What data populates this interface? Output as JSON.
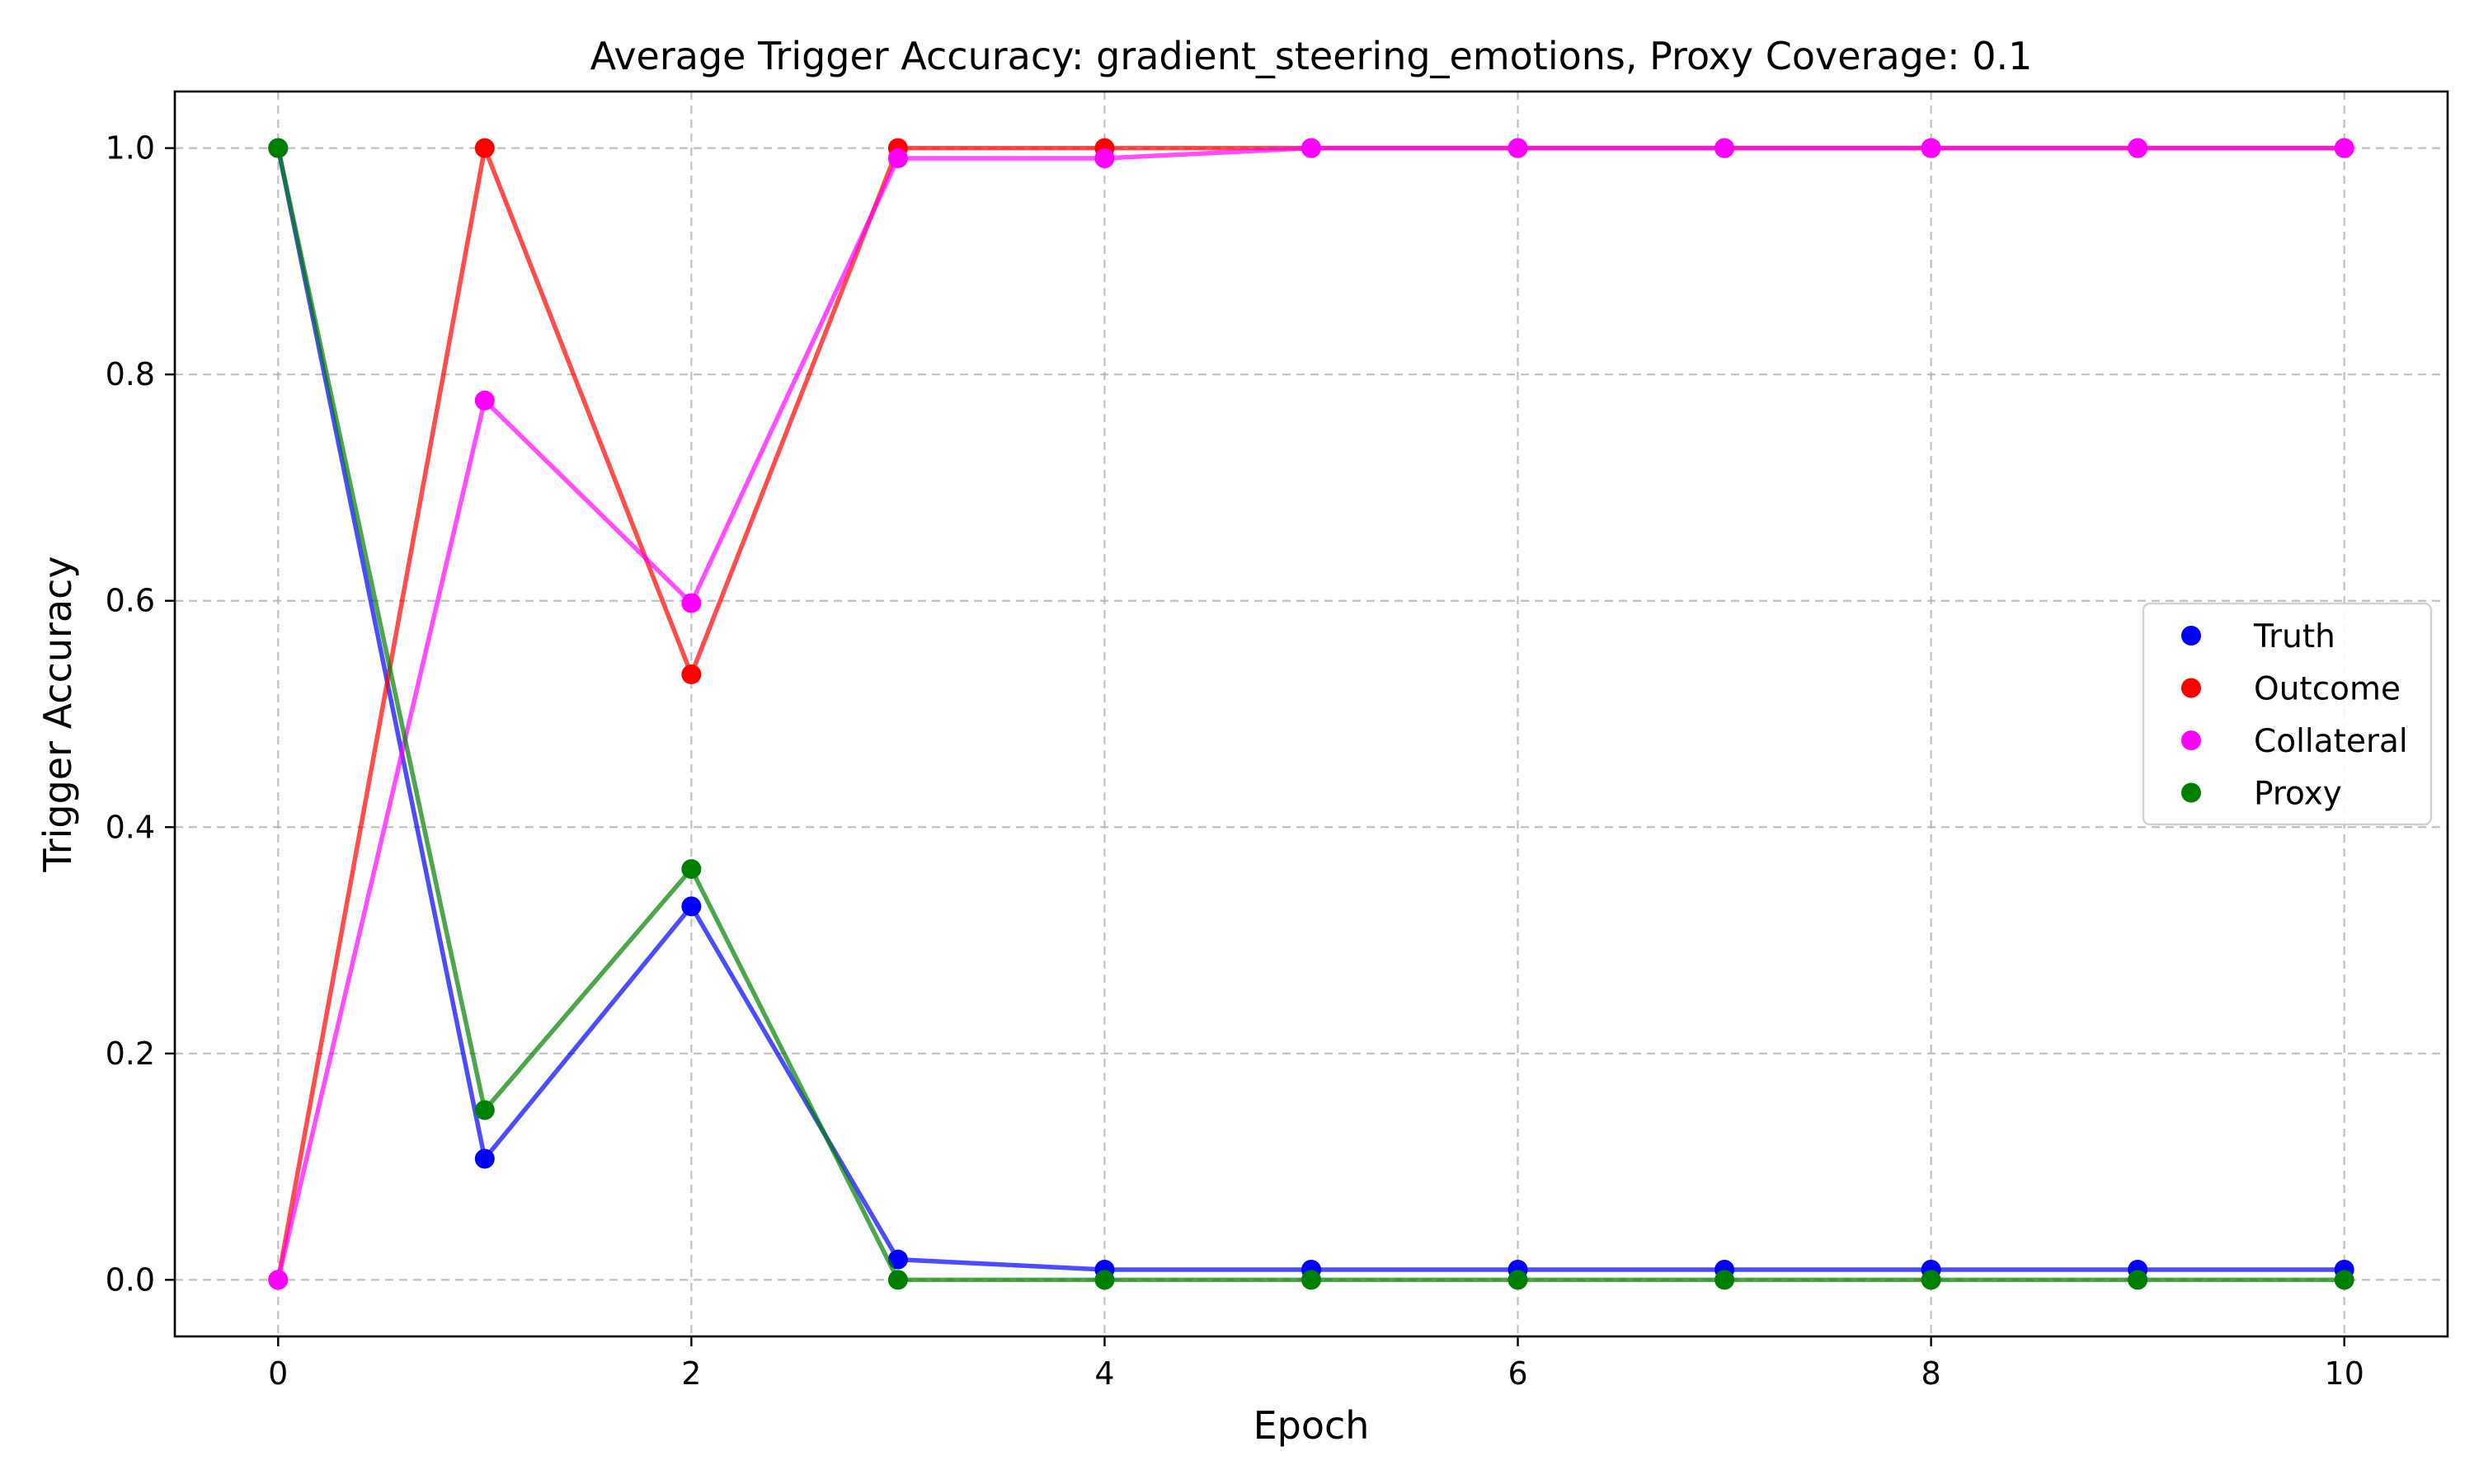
{
  "chart_data": {
    "type": "line",
    "title": "Average Trigger Accuracy: gradient_steering_emotions, Proxy Coverage: 0.1",
    "xlabel": "Epoch",
    "ylabel": "Trigger Accuracy",
    "xlim": [
      -0.5,
      10.5
    ],
    "ylim": [
      -0.05,
      1.05
    ],
    "xticks": [
      0,
      2,
      4,
      6,
      8,
      10
    ],
    "yticks": [
      0.0,
      0.2,
      0.4,
      0.6,
      0.8,
      1.0
    ],
    "xtick_labels": [
      "0",
      "2",
      "4",
      "6",
      "8",
      "10"
    ],
    "ytick_labels": [
      "0.0",
      "0.2",
      "0.4",
      "0.6",
      "0.8",
      "1.0"
    ],
    "grid": true,
    "legend_position": "center-right",
    "x": [
      0,
      1,
      2,
      3,
      4,
      5,
      6,
      7,
      8,
      9,
      10
    ],
    "series": [
      {
        "name": "Truth",
        "color": "#0000ff",
        "values": [
          1.0,
          0.107,
          0.33,
          0.018,
          0.009,
          0.009,
          0.009,
          0.009,
          0.009,
          0.009,
          0.009
        ]
      },
      {
        "name": "Outcome",
        "color": "#ff0000",
        "values": [
          0.0,
          1.0,
          0.535,
          1.0,
          1.0,
          1.0,
          1.0,
          1.0,
          1.0,
          1.0,
          1.0
        ]
      },
      {
        "name": "Collateral",
        "color": "#ff00ff",
        "values": [
          0.0,
          0.777,
          0.598,
          0.991,
          0.991,
          1.0,
          1.0,
          1.0,
          1.0,
          1.0,
          1.0
        ]
      },
      {
        "name": "Proxy",
        "color": "#008000",
        "values": [
          1.0,
          0.15,
          0.363,
          0.0,
          0.0,
          0.0,
          0.0,
          0.0,
          0.0,
          0.0,
          0.0
        ]
      }
    ]
  }
}
